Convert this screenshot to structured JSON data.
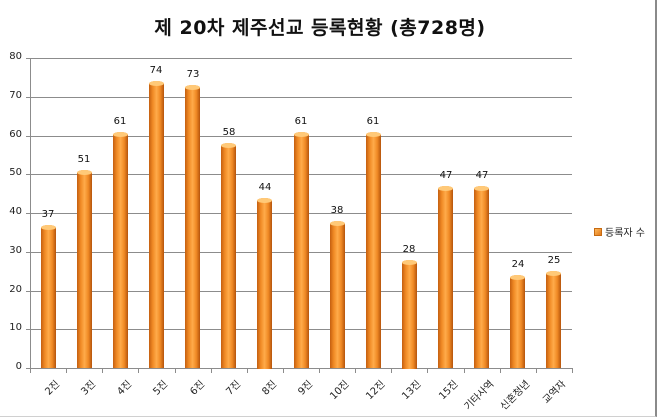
{
  "chart_data": {
    "type": "bar",
    "title": "제 20차 제주선교 등록현황 (총728명)",
    "categories": [
      "2진",
      "3진",
      "4진",
      "5진",
      "6진",
      "7진",
      "8진",
      "9진",
      "10진",
      "12진",
      "13진",
      "15진",
      "기타사역",
      "신혼청년",
      "교역자"
    ],
    "series": [
      {
        "name": "등록자 수",
        "values": [
          37,
          51,
          61,
          74,
          73,
          58,
          44,
          61,
          38,
          61,
          28,
          47,
          47,
          24,
          25
        ],
        "color": "#f08a25"
      }
    ],
    "xlabel": "",
    "ylabel": "",
    "ylim": [
      0,
      80
    ],
    "yticks": [
      0,
      10,
      20,
      30,
      40,
      50,
      60,
      70,
      80
    ],
    "grid": true,
    "legend_position": "right",
    "data_labels": true
  },
  "legend": {
    "label": "등록자 수"
  }
}
